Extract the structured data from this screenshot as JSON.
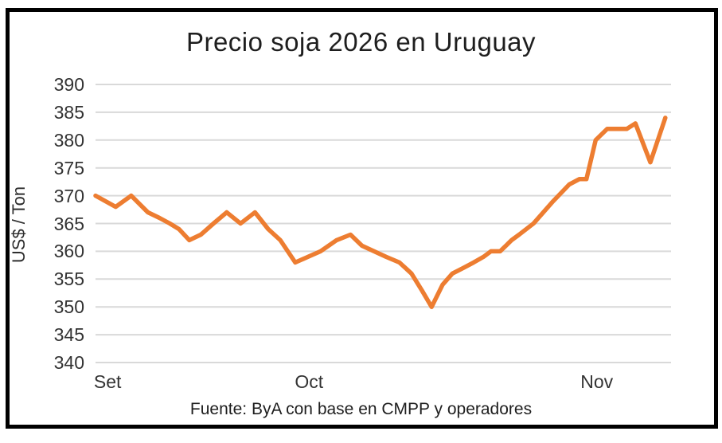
{
  "chart": {
    "title": "Precio soja 2026 en Uruguay",
    "y_axis_title": "US$ / Ton",
    "source_note": "Fuente: ByA con base en CMPP y operadores",
    "colors": {
      "line": "#ED7D31",
      "gridline": "#D9D9D9",
      "frame": "#000000",
      "text": "#333333"
    }
  },
  "chart_data": {
    "type": "line",
    "title": "Precio soja 2026 en Uruguay",
    "xlabel": "",
    "ylabel": "US$ / Ton",
    "ylim": [
      340,
      390
    ],
    "ytick_step": 5,
    "yticks": [
      390,
      385,
      380,
      375,
      370,
      365,
      360,
      355,
      350,
      345,
      340
    ],
    "grid": "horizontal",
    "legend": "none",
    "x_ticks": {
      "labels": [
        "Set",
        "Oct",
        "Nov"
      ],
      "fractions": [
        0.021,
        0.371,
        0.871
      ]
    },
    "series": [
      {
        "name": "Precio soja 2026",
        "color": "#ED7D31",
        "x_fractions": [
          0.0,
          0.035,
          0.062,
          0.091,
          0.111,
          0.129,
          0.145,
          0.163,
          0.183,
          0.205,
          0.228,
          0.252,
          0.277,
          0.3,
          0.321,
          0.347,
          0.369,
          0.391,
          0.419,
          0.443,
          0.463,
          0.484,
          0.505,
          0.528,
          0.549,
          0.567,
          0.584,
          0.603,
          0.62,
          0.639,
          0.657,
          0.674,
          0.687,
          0.703,
          0.723,
          0.736,
          0.761,
          0.795,
          0.823,
          0.841,
          0.853,
          0.869,
          0.889,
          0.906,
          0.923,
          0.938,
          0.964,
          0.99
        ],
        "values": [
          370,
          368,
          370,
          367,
          366,
          365,
          364,
          362,
          363,
          365,
          367,
          365,
          367,
          364,
          362,
          358,
          359,
          360,
          362,
          363,
          361,
          360,
          359,
          358,
          356,
          353,
          350,
          354,
          356,
          357,
          358,
          359,
          360,
          360,
          362,
          363,
          365,
          369,
          372,
          373,
          373,
          380,
          382,
          382,
          382,
          383,
          376,
          384
        ]
      }
    ]
  }
}
